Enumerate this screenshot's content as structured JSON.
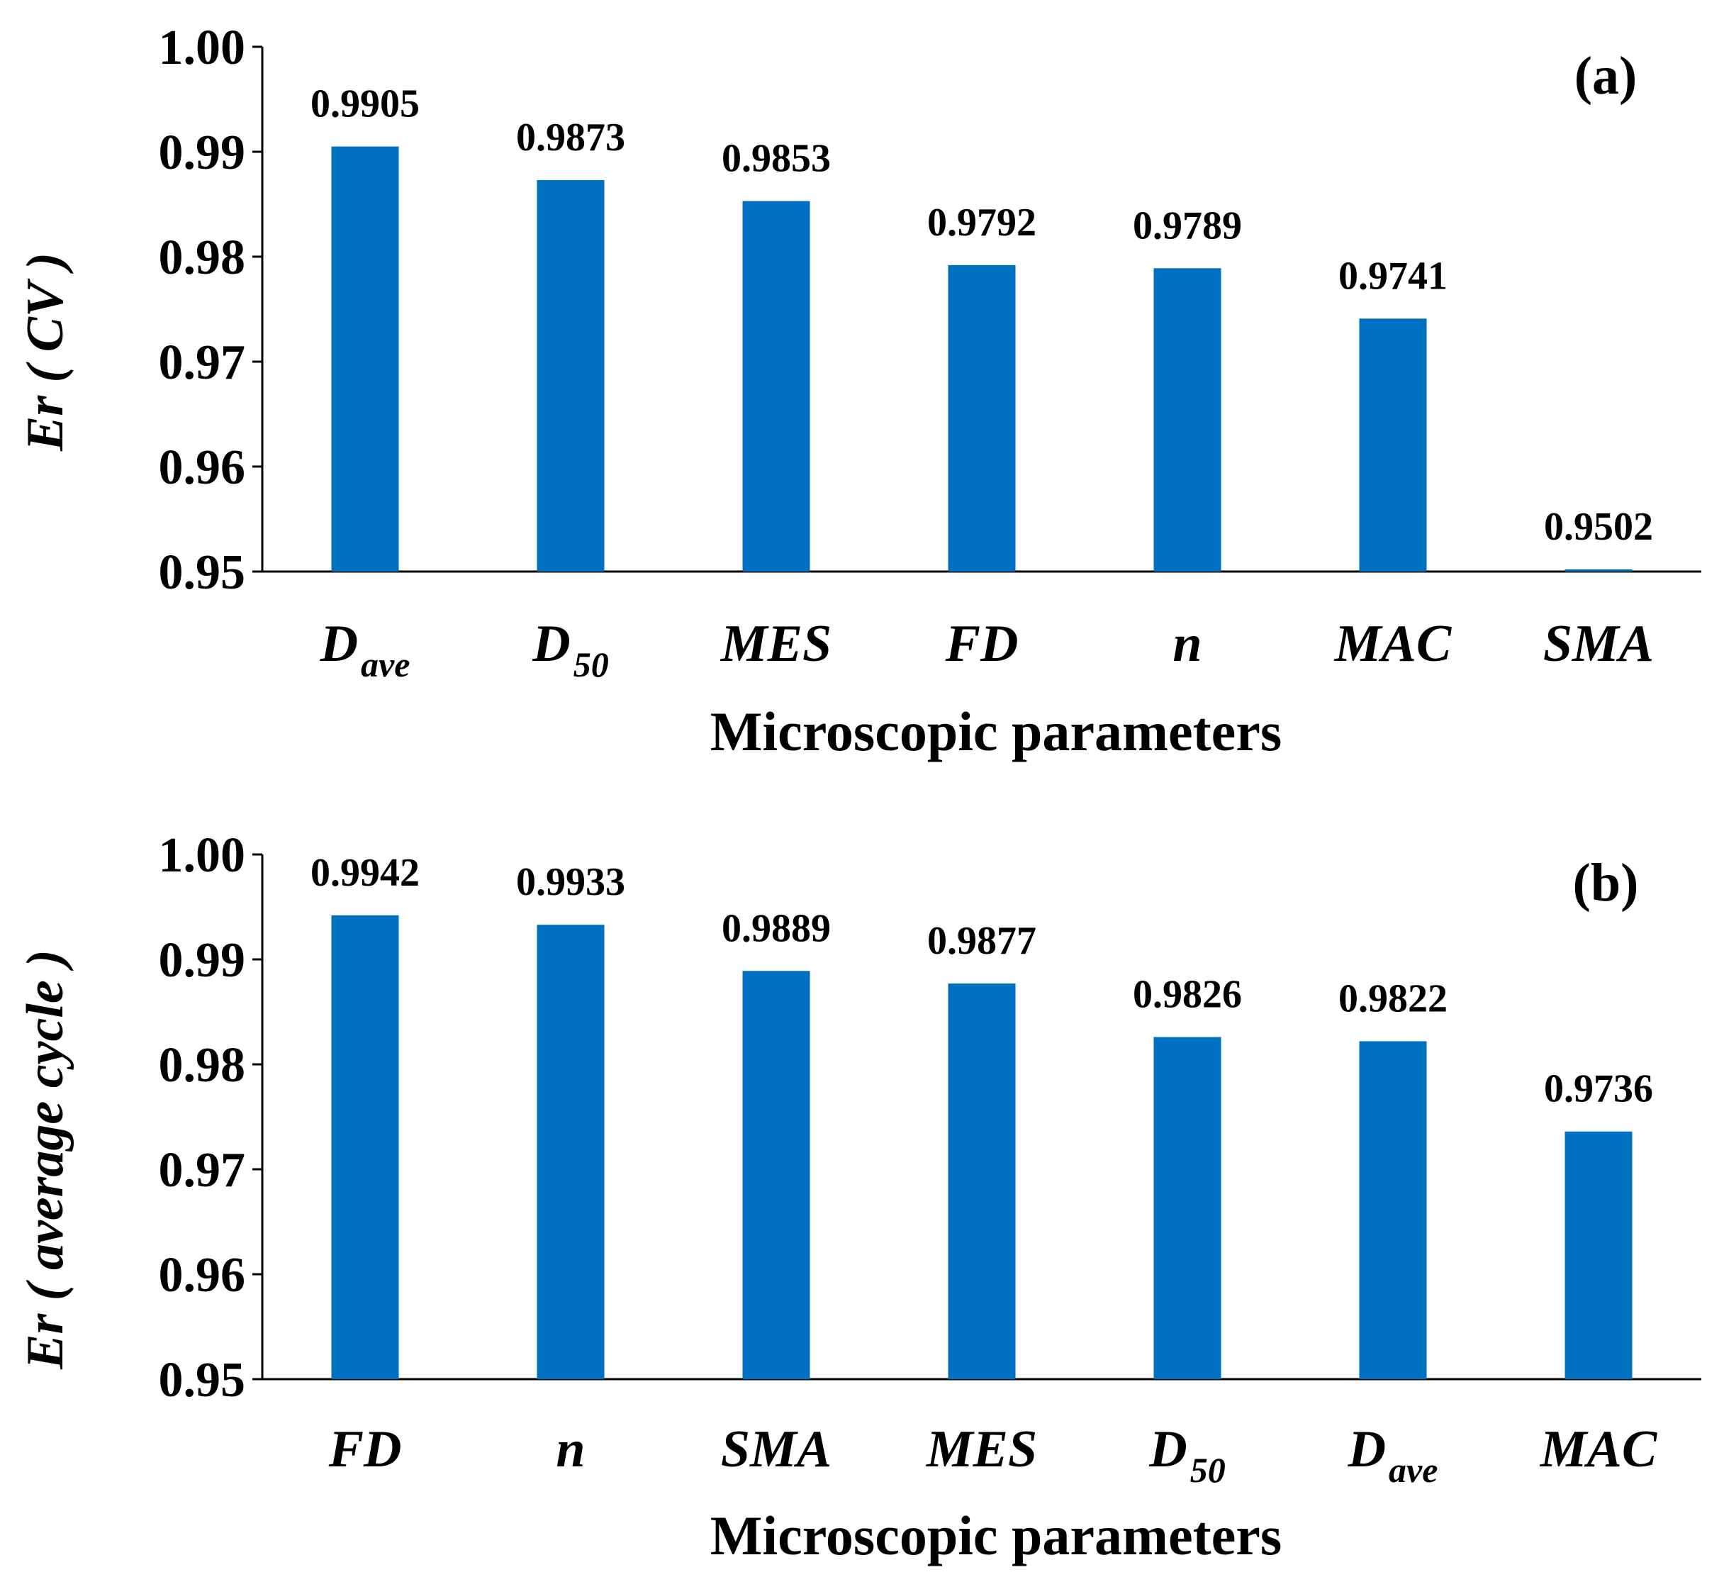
{
  "chart_data": [
    {
      "type": "bar",
      "panel": "(a)",
      "categories": [
        {
          "main": "D",
          "sub": "ave"
        },
        {
          "main": "D",
          "sub": "50"
        },
        {
          "main": "MES",
          "sub": ""
        },
        {
          "main": "FD",
          "sub": ""
        },
        {
          "main": "n",
          "sub": ""
        },
        {
          "main": "MAC",
          "sub": ""
        },
        {
          "main": "SMA",
          "sub": ""
        }
      ],
      "values": [
        0.9905,
        0.9873,
        0.9853,
        0.9792,
        0.9789,
        0.9741,
        0.9502
      ],
      "value_labels": [
        "0.9905",
        "0.9873",
        "0.9853",
        "0.9792",
        "0.9789",
        "0.9741",
        "0.9502"
      ],
      "ylim": [
        0.95,
        1.0
      ],
      "yticks": [
        "0.95",
        "0.96",
        "0.97",
        "0.98",
        "0.99",
        "1.00"
      ],
      "ytick_values": [
        0.95,
        0.96,
        0.97,
        0.98,
        0.99,
        1.0
      ],
      "xlabel": "Microscopic parameters",
      "ylabel": "Er ( CV )",
      "bar_color": "#0070C0"
    },
    {
      "type": "bar",
      "panel": "(b)",
      "categories": [
        {
          "main": "FD",
          "sub": ""
        },
        {
          "main": "n",
          "sub": ""
        },
        {
          "main": "SMA",
          "sub": ""
        },
        {
          "main": "MES",
          "sub": ""
        },
        {
          "main": "D",
          "sub": "50"
        },
        {
          "main": "D",
          "sub": "ave"
        },
        {
          "main": "MAC",
          "sub": ""
        }
      ],
      "values": [
        0.9942,
        0.9933,
        0.9889,
        0.9877,
        0.9826,
        0.9822,
        0.9736
      ],
      "value_labels": [
        "0.9942",
        "0.9933",
        "0.9889",
        "0.9877",
        "0.9826",
        "0.9822",
        "0.9736"
      ],
      "ylim": [
        0.95,
        1.0
      ],
      "yticks": [
        "0.95",
        "0.96",
        "0.97",
        "0.98",
        "0.99",
        "1.00"
      ],
      "ytick_values": [
        0.95,
        0.96,
        0.97,
        0.98,
        0.99,
        1.0
      ],
      "xlabel": "Microscopic parameters",
      "ylabel": "Er ( average  cycle )",
      "bar_color": "#0070C0"
    }
  ]
}
